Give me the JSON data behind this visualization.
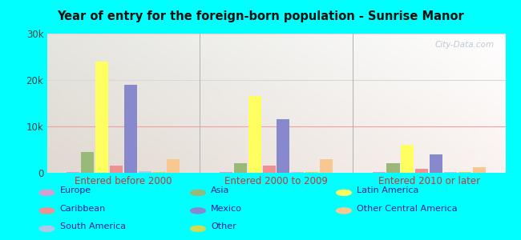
{
  "title": "Year of entry for the foreign-born population - Sunrise Manor",
  "groups": [
    "Entered before 2000",
    "Entered 2000 to 2009",
    "Entered 2010 or later"
  ],
  "categories": [
    "Europe",
    "Asia",
    "Latin America",
    "Caribbean",
    "Mexico",
    "South America",
    "Other",
    "Other Central America"
  ],
  "colors": [
    "#d4a0d0",
    "#9ab87a",
    "#ffff60",
    "#f09090",
    "#8888cc",
    "#b0c8e8",
    "#d0dc50",
    "#f8c890"
  ],
  "values": {
    "Entered before 2000": [
      200,
      4500,
      24000,
      1500,
      19000,
      350,
      250,
      3000
    ],
    "Entered 2000 to 2009": [
      150,
      2000,
      16500,
      1500,
      11500,
      150,
      150,
      3000
    ],
    "Entered 2010 or later": [
      100,
      2000,
      6000,
      900,
      4000,
      150,
      100,
      1200
    ]
  },
  "ylim": [
    0,
    30000
  ],
  "yticks": [
    0,
    10000,
    20000,
    30000
  ],
  "ytick_labels": [
    "0",
    "10k",
    "20k",
    "30k"
  ],
  "background_color": "#00ffff",
  "grid_color": "#d8d8d8",
  "special_grid_color": "#f0a0a0",
  "watermark": "City-Data.com",
  "legend_layout": [
    [
      {
        "label": "Europe",
        "color": "#d4a0d0"
      },
      {
        "label": "Caribbean",
        "color": "#f09090"
      },
      {
        "label": "South America",
        "color": "#b0c8e8"
      }
    ],
    [
      {
        "label": "Asia",
        "color": "#9ab87a"
      },
      {
        "label": "Mexico",
        "color": "#8888cc"
      },
      {
        "label": "Other",
        "color": "#d0dc50"
      }
    ],
    [
      {
        "label": "Latin America",
        "color": "#ffff60"
      },
      {
        "label": "Other Central America",
        "color": "#f8c890"
      }
    ]
  ]
}
